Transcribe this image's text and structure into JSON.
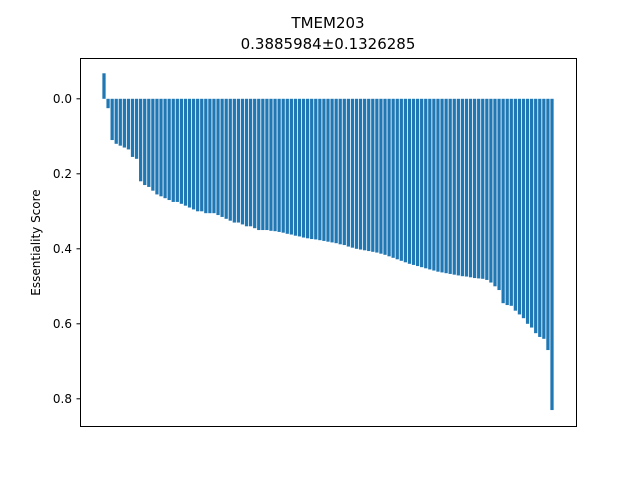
{
  "chart_data": {
    "type": "bar",
    "title": "TMEM203",
    "subtitle": "0.3885984±0.1326285",
    "xlabel": "",
    "ylabel": "Essentiality Score",
    "y_axis_inverted": true,
    "ylim": [
      0.875,
      -0.068
    ],
    "yticks": [
      0.0,
      0.2,
      0.4,
      0.6,
      0.8
    ],
    "ytick_labels": [
      "0.0",
      "0.2",
      "0.4",
      "0.6",
      "0.8"
    ],
    "xticks_visible": false,
    "grid": false,
    "bar_color": "#1f77b4",
    "values": [
      -0.068,
      0.025,
      0.11,
      0.12,
      0.125,
      0.13,
      0.135,
      0.155,
      0.16,
      0.22,
      0.23,
      0.235,
      0.245,
      0.255,
      0.26,
      0.265,
      0.27,
      0.275,
      0.275,
      0.28,
      0.285,
      0.29,
      0.295,
      0.3,
      0.3,
      0.305,
      0.305,
      0.305,
      0.31,
      0.315,
      0.32,
      0.325,
      0.33,
      0.33,
      0.335,
      0.34,
      0.34,
      0.345,
      0.35,
      0.35,
      0.35,
      0.352,
      0.353,
      0.355,
      0.357,
      0.36,
      0.362,
      0.365,
      0.367,
      0.37,
      0.372,
      0.374,
      0.375,
      0.377,
      0.379,
      0.381,
      0.383,
      0.385,
      0.388,
      0.39,
      0.394,
      0.397,
      0.4,
      0.402,
      0.404,
      0.406,
      0.408,
      0.41,
      0.413,
      0.416,
      0.42,
      0.424,
      0.428,
      0.432,
      0.436,
      0.44,
      0.443,
      0.446,
      0.449,
      0.452,
      0.455,
      0.458,
      0.461,
      0.463,
      0.465,
      0.467,
      0.469,
      0.471,
      0.473,
      0.474,
      0.476,
      0.478,
      0.479,
      0.48,
      0.483,
      0.49,
      0.5,
      0.51,
      0.545,
      0.55,
      0.552,
      0.565,
      0.575,
      0.585,
      0.6,
      0.61,
      0.625,
      0.635,
      0.64,
      0.67,
      0.83
    ]
  }
}
